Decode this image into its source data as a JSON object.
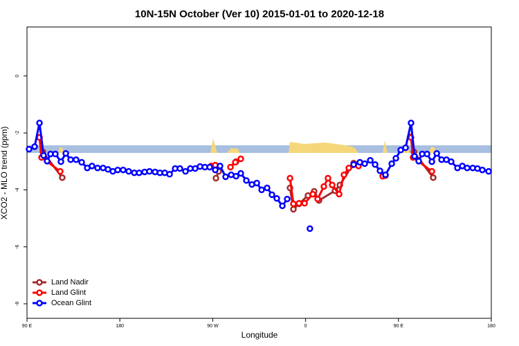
{
  "chart_data": {
    "type": "line",
    "title": "10N-15N October (Ver 10)   2015-01-01 to 2020-12-18",
    "x_label": "Longitude",
    "y_label": "XCO2 - MLO trend (ppm)",
    "xlim": [
      90,
      540
    ],
    "ylim": [
      -8.51,
      1.72
    ],
    "xticks": [
      {
        "value": 90,
        "label": "90 E"
      },
      180,
      {
        "value": 270,
        "label": "90 W"
      },
      {
        "value": 360,
        "label": "0"
      },
      {
        "value": 450,
        "label": "90 E"
      },
      {
        "value": 540,
        "label": "180"
      }
    ],
    "yticks": [
      -8,
      -6,
      -4,
      -2,
      0
    ],
    "legend": "bottom-left",
    "series": [
      {
        "name": "Land Nadir",
        "color": "#a52a2a",
        "x": [
          102.1,
          105.4,
          124.2,
          null,
          273.1,
          275.8,
          null,
          292.6,
          null,
          344.9,
          348.2,
          353.6,
          362.3,
          368.3,
          373,
          388.5,
          393.2,
          406.6,
          null,
          461.6,
          465,
          483.7
        ],
        "values": [
          -2.16,
          -2.67,
          -3.57,
          null,
          -3.59,
          -3.35,
          null,
          -3.01,
          null,
          -3.93,
          -4.68,
          -4.49,
          -4.2,
          -4.05,
          -4.37,
          -4.03,
          -3.83,
          -3.06,
          null,
          -2.14,
          -2.67,
          -3.57
        ]
      },
      {
        "name": "Land Glint",
        "color": "#ff0000",
        "x": [
          102.1,
          104.1,
          122.2,
          null,
          268.4,
          272.5,
          null,
          287.2,
          291.9,
          297.2,
          null,
          344.9,
          348.2,
          353.6,
          359,
          367,
          371.7,
          377.7,
          381.7,
          385.8,
          392.5,
          397.2,
          401.9,
          411.3,
          null,
          434.7,
          437.4,
          null,
          462.2,
          464.2,
          482.4
        ],
        "values": [
          -2.16,
          -2.86,
          -3.35,
          null,
          -3.16,
          -3.13,
          null,
          -3.2,
          -3.03,
          -2.91,
          null,
          -3.59,
          -4.49,
          -4.47,
          -4.47,
          -4.15,
          -4.32,
          -3.88,
          -3.59,
          -3.83,
          -4.15,
          -3.47,
          -3.23,
          -3.16,
          null,
          -3.52,
          -3.5,
          null,
          -2.16,
          -2.86,
          -3.35
        ]
      },
      {
        "name": "Ocean Glint",
        "color": "#0000ff",
        "x": [
          92,
          97.4,
          102.1,
          106.1,
          109.5,
          112.8,
          117.5,
          122.9,
          127.6,
          132.3,
          137.6,
          143,
          148.4,
          153,
          158.4,
          163.8,
          168.5,
          173.2,
          177.9,
          183.2,
          188.6,
          194,
          198.7,
          204,
          208.7,
          214.1,
          218.8,
          223.5,
          228.2,
          233.6,
          238.2,
          243.6,
          248.3,
          253,
          257.7,
          262.4,
          267.1,
          272.5,
          277.1,
          282.5,
          287.9,
          292.6,
          297.2,
          302.6,
          308,
          312.7,
          317.4,
          322.7,
          327.4,
          332.1,
          337.5,
          342.2,
          null,
          364.2,
          null,
          406.6,
          412.6,
          417.3,
          422.7,
          427.4,
          432.1,
          437.4,
          443.5,
          447.5,
          452.2,
          456.9,
          462.2,
          465.6,
          469.6,
          473,
          477.7,
          482.4,
          487.1,
          491.8,
          496.5,
          501.1,
          507.2,
          511.9,
          516.6,
          522,
          526.6,
          531.3,
          537.4
        ],
        "values": [
          -2.57,
          -2.48,
          -1.65,
          -2.79,
          -2.99,
          -2.74,
          -2.74,
          -3.01,
          -2.72,
          -2.94,
          -2.94,
          -3.03,
          -3.23,
          -3.16,
          -3.23,
          -3.23,
          -3.28,
          -3.35,
          -3.3,
          -3.3,
          -3.35,
          -3.4,
          -3.4,
          -3.37,
          -3.35,
          -3.37,
          -3.4,
          -3.4,
          -3.45,
          -3.25,
          -3.25,
          -3.35,
          -3.25,
          -3.25,
          -3.18,
          -3.2,
          -3.2,
          -3.3,
          -3.16,
          -3.54,
          -3.47,
          -3.52,
          -3.42,
          -3.67,
          -3.81,
          -3.76,
          -4.0,
          -3.93,
          -4.17,
          -4.3,
          -4.56,
          -4.32,
          null,
          -5.36,
          null,
          -3.11,
          -3.03,
          -3.08,
          -2.96,
          -3.11,
          -3.33,
          -3.47,
          -3.08,
          -2.89,
          -2.6,
          -2.52,
          -1.65,
          -2.82,
          -2.99,
          -2.74,
          -2.74,
          -3.01,
          -2.72,
          -2.94,
          -2.94,
          -3.01,
          -3.23,
          -3.16,
          -3.23,
          -3.23,
          -3.25,
          -3.3,
          -3.35
        ]
      }
    ]
  }
}
